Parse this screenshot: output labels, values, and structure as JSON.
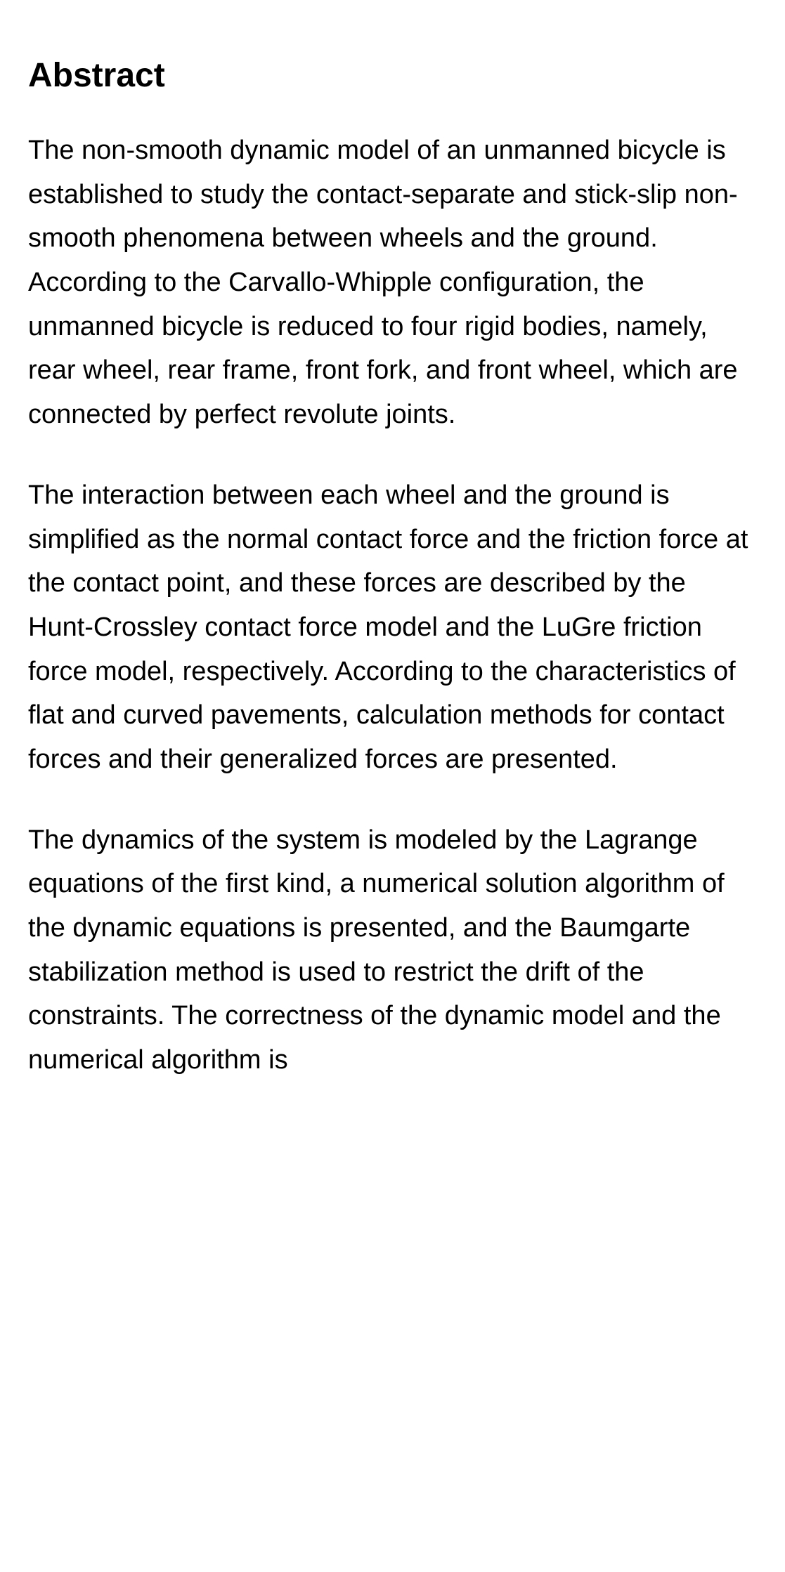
{
  "abstract": {
    "heading": "Abstract",
    "paragraphs": [
      "The non-smooth dynamic model of an unmanned bicycle is established to study the contact-separate and stick-slip non-smooth phenomena between wheels and the ground. According to the Carvallo-Whipple configuration, the unmanned bicycle is reduced to four rigid bodies, namely, rear wheel, rear frame, front fork, and front wheel, which are connected by perfect revolute joints.",
      "The interaction between each wheel and the ground is simplified as the normal contact force and the friction force at the contact point, and these forces are described by the Hunt-Crossley contact force model and the LuGre friction force model, respectively. According to the characteristics of flat and curved pavements, calculation methods for contact forces and their generalized forces are presented.",
      "The dynamics of the system is modeled by the Lagrange equations of the first kind, a numerical solution algorithm of the dynamic equations is presented, and the Baumgarte stabilization method is used to restrict the drift of the constraints. The correctness of the dynamic model and the numerical algorithm is"
    ]
  },
  "styles": {
    "background_color": "#ffffff",
    "heading_color": "#000000",
    "heading_fontsize": 48,
    "heading_fontweight": 700,
    "body_color": "#000000",
    "body_fontsize": 38,
    "body_lineheight": 1.65,
    "paragraph_spacing": 52
  }
}
